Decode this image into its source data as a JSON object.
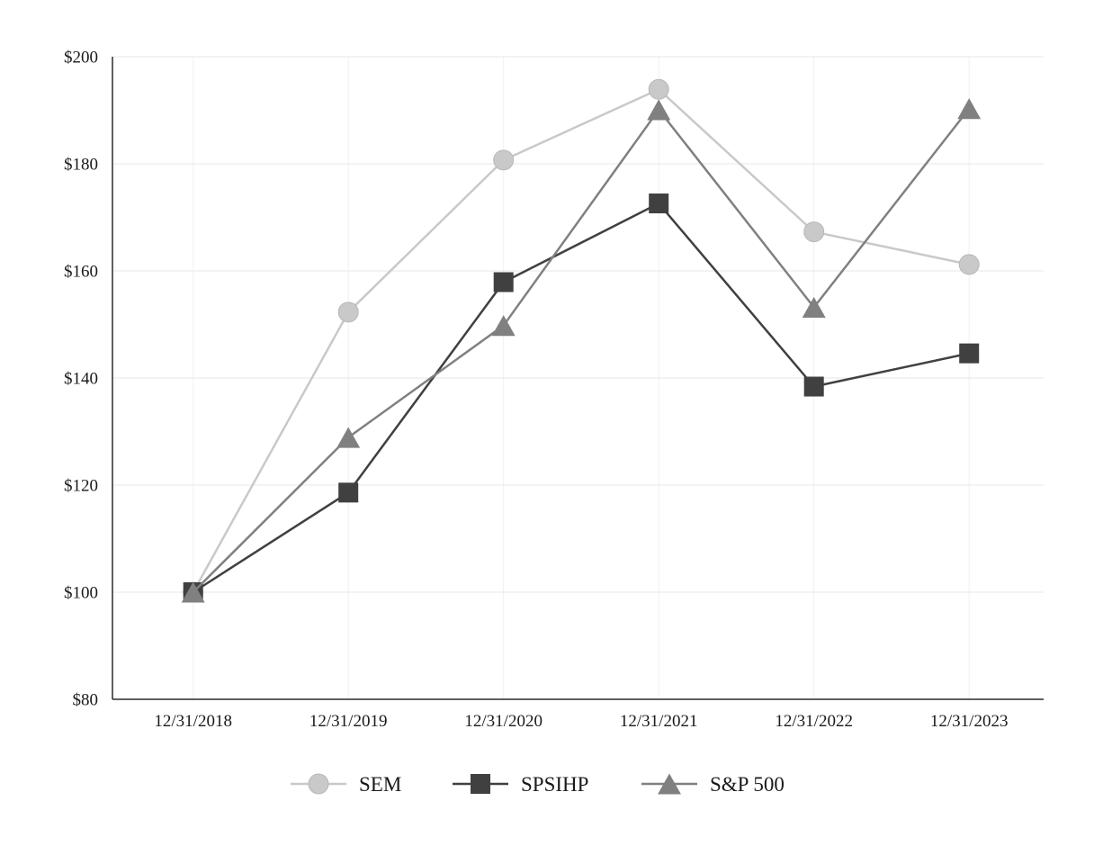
{
  "chart_data": {
    "type": "line",
    "x": [
      "12/31/2018",
      "12/31/2019",
      "12/31/2020",
      "12/31/2021",
      "12/31/2022",
      "12/31/2023"
    ],
    "series": [
      {
        "name": "SEM",
        "marker": "circle",
        "color": "#c9c9c9",
        "marker_stroke": "#b8b8b8",
        "values": [
          100,
          152.3,
          180.7,
          193.9,
          167.3,
          161.2
        ]
      },
      {
        "name": "SPSIHP",
        "marker": "square",
        "color": "#404040",
        "marker_stroke": "#333333",
        "values": [
          100,
          118.6,
          157.9,
          172.6,
          138.4,
          144.6
        ]
      },
      {
        "name": "S&P 500",
        "marker": "triangle",
        "color": "#808080",
        "marker_stroke": "#737373",
        "values": [
          100,
          128.9,
          149.8,
          190.1,
          153.2,
          190.3
        ]
      }
    ],
    "ylim": [
      80,
      200
    ],
    "ytick_step": 20,
    "ytick_prefix": "$",
    "grid": true,
    "grid_color": "#e7e7e7",
    "vgrid_color": "#f0f0f0",
    "axis_color": "#2b2b2b",
    "legend_position": "bottom"
  }
}
